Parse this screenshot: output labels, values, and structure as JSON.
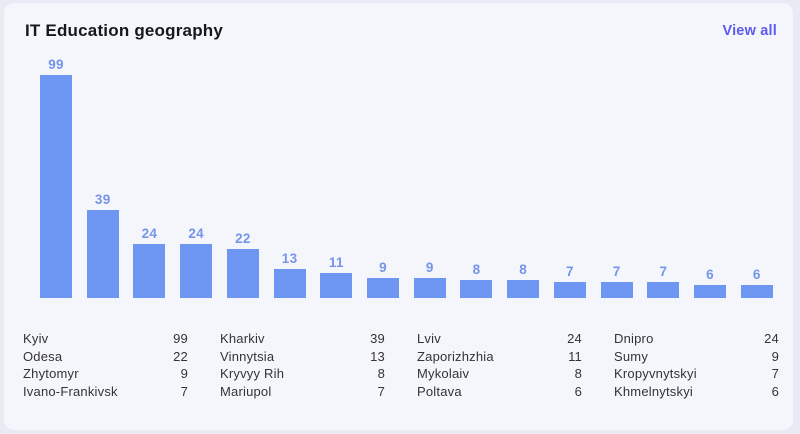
{
  "header": {
    "title": "IT Education geography",
    "view_all_label": "View all"
  },
  "chart_data": {
    "type": "bar",
    "title": "IT Education geography",
    "categories": [
      "Kyiv",
      "Kharkiv",
      "Lviv",
      "Dnipro",
      "Odesa",
      "Vinnytsia",
      "Zaporizhzhia",
      "Sumy",
      "Zhytomyr",
      "Kryvyy Rih",
      "Mykolaiv",
      "Kropyvnytskyi",
      "Ivano-Frankivsk",
      "Mariupol",
      "Poltava",
      "Khmelnytskyi"
    ],
    "values": [
      99,
      39,
      24,
      24,
      22,
      13,
      11,
      9,
      9,
      8,
      8,
      7,
      7,
      7,
      6,
      6
    ],
    "value_labels_shown": true,
    "xlabel": "",
    "ylabel": "",
    "ylim": [
      0,
      105
    ],
    "grid": false,
    "legend_position": "none",
    "x_tick_labels_shown": false,
    "bar_color": "#6e97f3",
    "value_label_color": "#7495e9"
  },
  "legend_table": {
    "rows": [
      [
        {
          "name": "Kyiv",
          "value": "99"
        },
        {
          "name": "Kharkiv",
          "value": "39"
        },
        {
          "name": "Lviv",
          "value": "24"
        },
        {
          "name": "Dnipro",
          "value": "24"
        }
      ],
      [
        {
          "name": "Odesa",
          "value": "22"
        },
        {
          "name": "Vinnytsia",
          "value": "13"
        },
        {
          "name": "Zaporizhzhia",
          "value": "11"
        },
        {
          "name": "Sumy",
          "value": "9"
        }
      ],
      [
        {
          "name": "Zhytomyr",
          "value": "9"
        },
        {
          "name": "Kryvyy Rih",
          "value": "8"
        },
        {
          "name": "Mykolaiv",
          "value": "8"
        },
        {
          "name": "Kropyvnytskyi",
          "value": "7"
        }
      ],
      [
        {
          "name": "Ivano-Frankivsk",
          "value": "7"
        },
        {
          "name": "Mariupol",
          "value": "7"
        },
        {
          "name": "Poltava",
          "value": "6"
        },
        {
          "name": "Khmelnytskyi",
          "value": "6"
        }
      ]
    ]
  },
  "colors": {
    "page_bg": "#e9eaf3",
    "card_bg": "#f5f6fb",
    "accent": "#5a5bef",
    "title_text": "#17171f",
    "table_text": "#33333a"
  }
}
